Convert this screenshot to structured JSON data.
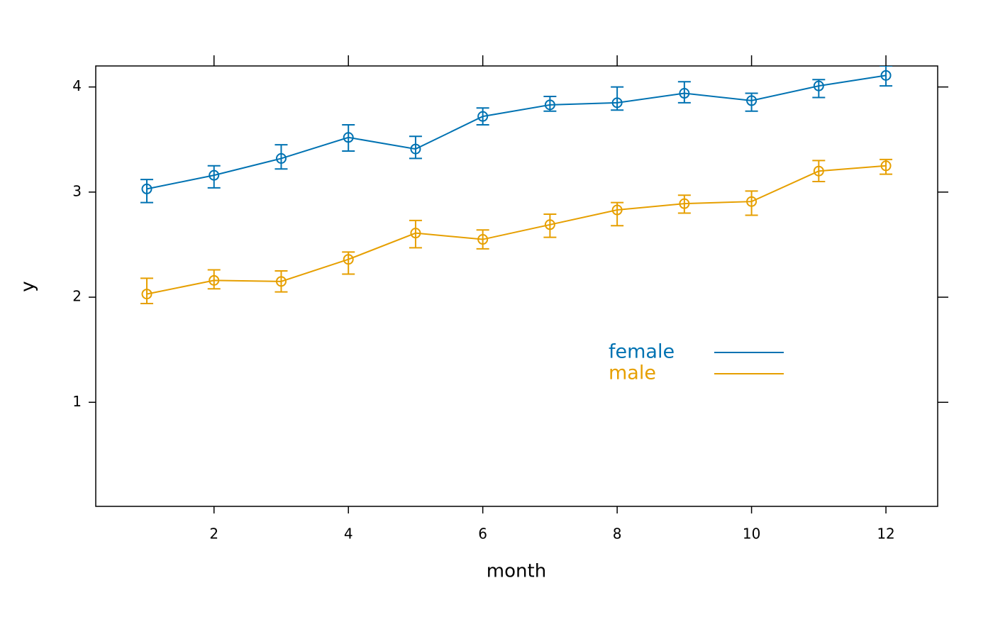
{
  "chart_data": {
    "type": "line",
    "x_label": "month",
    "y_label": "y",
    "x": [
      1,
      2,
      3,
      4,
      5,
      6,
      7,
      8,
      9,
      10,
      11,
      12
    ],
    "series": [
      {
        "name": "female",
        "color": "#0072b2",
        "values": [
          3.03,
          3.16,
          3.32,
          3.52,
          3.41,
          3.72,
          3.83,
          3.85,
          3.94,
          3.87,
          4.01,
          4.11
        ],
        "lower": [
          2.9,
          3.04,
          3.22,
          3.39,
          3.32,
          3.64,
          3.77,
          3.78,
          3.85,
          3.77,
          3.9,
          4.01
        ],
        "upper": [
          3.12,
          3.25,
          3.45,
          3.64,
          3.53,
          3.8,
          3.91,
          4.0,
          4.05,
          3.94,
          4.07,
          4.2
        ]
      },
      {
        "name": "male",
        "color": "#e69f00",
        "values": [
          2.03,
          2.16,
          2.15,
          2.36,
          2.61,
          2.55,
          2.69,
          2.83,
          2.89,
          2.91,
          3.2,
          3.25
        ],
        "lower": [
          1.94,
          2.08,
          2.05,
          2.22,
          2.47,
          2.46,
          2.57,
          2.68,
          2.8,
          2.78,
          3.1,
          3.17
        ],
        "upper": [
          2.18,
          2.26,
          2.25,
          2.43,
          2.73,
          2.64,
          2.79,
          2.9,
          2.97,
          3.01,
          3.3,
          3.31
        ]
      }
    ],
    "xlim": [
      0.24,
      12.77
    ],
    "ylim": [
      0.01,
      4.2
    ],
    "xticks": [
      2,
      4,
      6,
      8,
      10,
      12
    ],
    "yticks": [
      1,
      2,
      3,
      4
    ]
  }
}
